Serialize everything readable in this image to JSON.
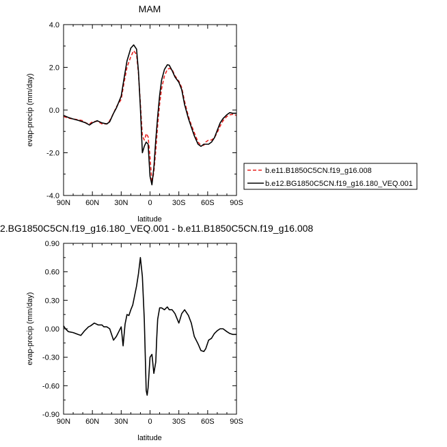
{
  "chart_data": [
    {
      "type": "line",
      "title": "MAM",
      "xlabel": "latitude",
      "ylabel": "evap-precip (mm/day)",
      "x_ticks": [
        "90N",
        "60N",
        "30N",
        "0",
        "30S",
        "60S",
        "90S"
      ],
      "x_tick_values": [
        -90,
        -60,
        -30,
        0,
        30,
        60,
        90
      ],
      "xlim": [
        -90,
        90
      ],
      "ylim": [
        -4.0,
        4.0
      ],
      "y_ticks": [
        "-4.0",
        "-2.0",
        "0.0",
        "2.0",
        "4.0"
      ],
      "y_tick_values": [
        -4,
        -2,
        0,
        2,
        4
      ],
      "x_note": "x = degrees from 90N (-90) to 90S (+90)",
      "legend_position": "right",
      "series": [
        {
          "name": "b.e11.B1850C5CN.f19_g16.008",
          "color": "#e8211f",
          "style": "dashed",
          "x": [
            -90,
            -85,
            -80,
            -75,
            -70,
            -67,
            -63,
            -60,
            -55,
            -50,
            -45,
            -42,
            -38,
            -35,
            -30,
            -27,
            -24,
            -20,
            -17,
            -14,
            -12,
            -10,
            -8,
            -6,
            -5,
            -4,
            -2,
            0,
            2,
            4,
            6,
            8,
            10,
            12,
            15,
            18,
            20,
            23,
            26,
            30,
            33,
            36,
            40,
            43,
            46,
            50,
            53,
            56,
            58,
            61,
            64,
            67,
            70,
            73,
            76,
            80,
            83,
            86,
            90
          ],
          "y": [
            -0.3,
            -0.38,
            -0.42,
            -0.45,
            -0.5,
            -0.6,
            -0.65,
            -0.55,
            -0.52,
            -0.65,
            -0.65,
            -0.5,
            -0.15,
            0.15,
            0.5,
            1.3,
            2.0,
            2.5,
            2.78,
            2.6,
            1.7,
            0.3,
            -1.2,
            -1.4,
            -1.3,
            -1.1,
            -1.25,
            -2.2,
            -3.4,
            -2.9,
            -1.9,
            -0.7,
            0.3,
            1.0,
            1.6,
            1.9,
            1.95,
            1.9,
            1.6,
            1.35,
            1.05,
            0.4,
            -0.3,
            -0.7,
            -1.05,
            -1.5,
            -1.65,
            -1.65,
            -1.5,
            -1.4,
            -1.4,
            -1.3,
            -1.05,
            -0.75,
            -0.5,
            -0.3,
            -0.22,
            -0.2,
            -0.25
          ]
        },
        {
          "name": "b.e12.BG1850C5CN.f19_g16.180_VEQ.001",
          "color": "#000000",
          "style": "solid",
          "x": [
            -90,
            -85,
            -80,
            -75,
            -70,
            -67,
            -63,
            -60,
            -55,
            -50,
            -45,
            -42,
            -38,
            -35,
            -30,
            -27,
            -24,
            -20,
            -17,
            -14,
            -12,
            -10,
            -8,
            -6,
            -4,
            -2,
            0,
            2,
            4,
            6,
            8,
            10,
            12,
            15,
            18,
            20,
            23,
            26,
            30,
            33,
            36,
            40,
            43,
            46,
            50,
            53,
            56,
            58,
            61,
            64,
            67,
            70,
            73,
            76,
            80,
            83,
            86,
            90
          ],
          "y": [
            -0.25,
            -0.35,
            -0.42,
            -0.48,
            -0.55,
            -0.6,
            -0.7,
            -0.6,
            -0.5,
            -0.6,
            -0.65,
            -0.55,
            -0.15,
            0.1,
            0.65,
            1.5,
            2.3,
            2.9,
            3.05,
            2.85,
            1.8,
            0.1,
            -2.0,
            -1.7,
            -1.5,
            -1.6,
            -3.1,
            -3.5,
            -2.7,
            -1.4,
            -0.3,
            0.7,
            1.4,
            1.9,
            2.12,
            2.1,
            1.85,
            1.55,
            1.3,
            0.95,
            0.25,
            -0.4,
            -0.8,
            -1.2,
            -1.6,
            -1.7,
            -1.6,
            -1.6,
            -1.6,
            -1.5,
            -1.3,
            -0.95,
            -0.6,
            -0.4,
            -0.22,
            -0.12,
            -0.15,
            -0.15
          ]
        }
      ]
    },
    {
      "type": "line",
      "title": "2.BG1850C5CN.f19_g16.180_VEQ.001 - b.e11.B1850C5CN.f19_g16.008",
      "xlabel": "latitude",
      "ylabel": "evap-precip (mm/day)",
      "x_ticks": [
        "90N",
        "60N",
        "30N",
        "0",
        "30S",
        "60S",
        "90S"
      ],
      "x_tick_values": [
        -90,
        -60,
        -30,
        0,
        30,
        60,
        90
      ],
      "xlim": [
        -90,
        90
      ],
      "ylim": [
        -0.9,
        0.9
      ],
      "y_ticks": [
        "-0.90",
        "-0.60",
        "-0.30",
        "0.00",
        "0.30",
        "0.60",
        "0.90"
      ],
      "y_tick_values": [
        -0.9,
        -0.6,
        -0.3,
        0.0,
        0.3,
        0.6,
        0.9
      ],
      "legend_position": "none",
      "series": [
        {
          "color": "#000000",
          "style": "solid",
          "x": [
            -90,
            -88,
            -85,
            -80,
            -75,
            -72,
            -68,
            -64,
            -62,
            -58,
            -54,
            -50,
            -48,
            -45,
            -42,
            -38,
            -35,
            -32,
            -30,
            -28,
            -26,
            -24,
            -22,
            -20,
            -18,
            -16,
            -14,
            -12,
            -10,
            -8,
            -6,
            -4,
            -3,
            -2,
            0,
            2,
            4,
            6,
            7,
            8,
            10,
            12,
            15,
            18,
            20,
            23,
            26,
            30,
            33,
            36,
            40,
            43,
            46,
            50,
            53,
            56,
            58,
            61,
            64,
            67,
            70,
            73,
            76,
            80,
            83,
            86,
            88,
            90
          ],
          "y": [
            0.03,
            0.0,
            -0.03,
            -0.04,
            -0.06,
            -0.07,
            -0.02,
            0.02,
            0.03,
            0.06,
            0.04,
            0.04,
            0.02,
            0.02,
            0.0,
            -0.12,
            -0.08,
            -0.02,
            0.02,
            -0.18,
            0.05,
            0.15,
            0.14,
            0.2,
            0.25,
            0.35,
            0.45,
            0.58,
            0.75,
            0.55,
            0.1,
            -0.65,
            -0.7,
            -0.62,
            -0.3,
            -0.27,
            -0.47,
            -0.35,
            -0.1,
            0.1,
            0.22,
            0.22,
            0.2,
            0.23,
            0.2,
            0.2,
            0.16,
            0.06,
            0.16,
            0.2,
            0.14,
            0.06,
            -0.08,
            -0.16,
            -0.23,
            -0.24,
            -0.21,
            -0.12,
            -0.1,
            -0.05,
            -0.02,
            0.0,
            0.0,
            -0.03,
            -0.05,
            -0.06,
            -0.06,
            -0.06
          ]
        }
      ]
    }
  ]
}
